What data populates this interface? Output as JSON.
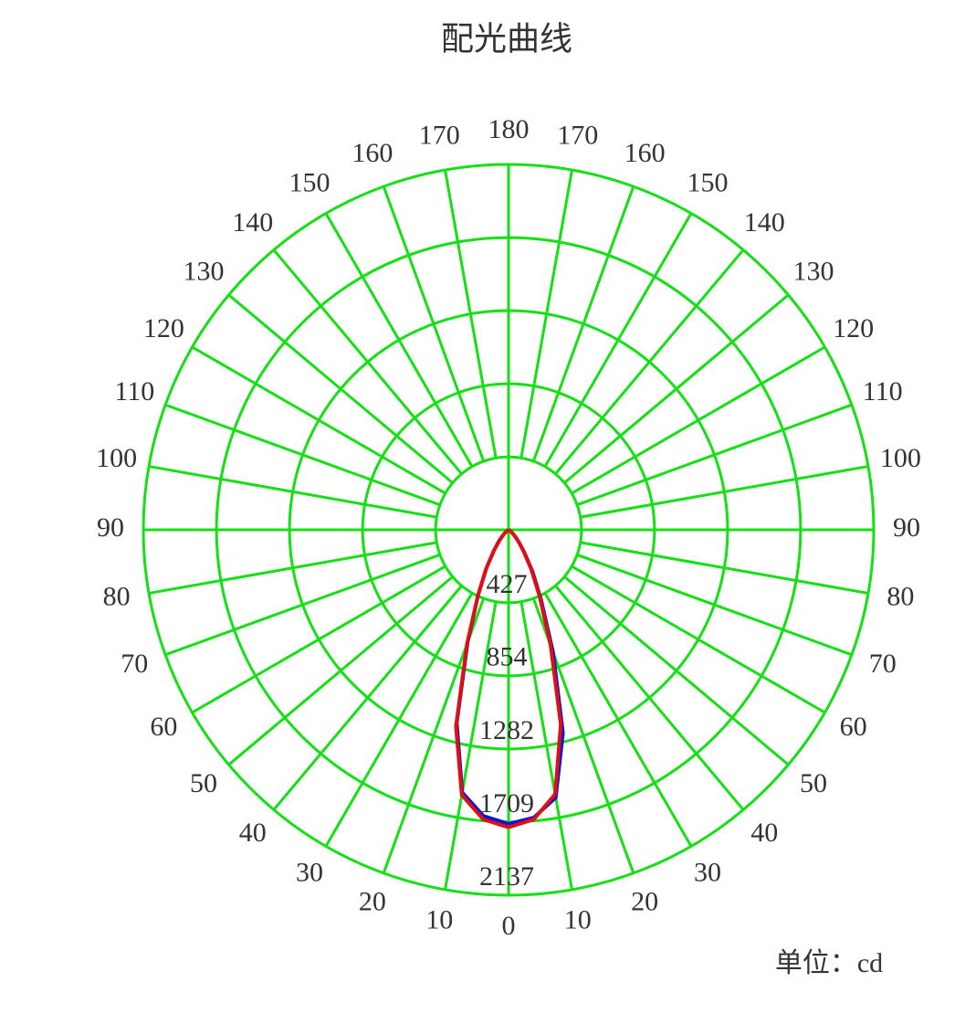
{
  "chart_data": {
    "type": "polar",
    "title": "配光曲线",
    "unit_label": "单位：cd",
    "rlim": [
      0,
      2137
    ],
    "rticks": [
      427,
      854,
      1282,
      1709,
      2137
    ],
    "angle_ticks": [
      0,
      10,
      20,
      30,
      40,
      50,
      60,
      70,
      80,
      90,
      100,
      110,
      120,
      130,
      140,
      150,
      160,
      170,
      180
    ],
    "grid_color": "#14e014",
    "x": [
      0,
      5,
      10,
      15,
      20,
      25,
      30,
      35,
      40,
      45,
      50,
      55,
      60,
      65,
      70,
      75,
      80,
      85,
      90
    ],
    "series": [
      {
        "color": "#1010e0",
        "side": "right",
        "values": [
          1720,
          1690,
          1590,
          1230,
          760,
          450,
          280,
          160,
          95,
          55,
          28,
          12,
          4,
          0,
          0,
          0,
          0,
          0,
          0
        ]
      },
      {
        "color": "#1010e0",
        "side": "left",
        "values": [
          1720,
          1680,
          1560,
          1170,
          700,
          420,
          260,
          150,
          90,
          50,
          25,
          10,
          3,
          0,
          0,
          0,
          0,
          0,
          0
        ]
      },
      {
        "color": "#e01010",
        "side": "right",
        "values": [
          1740,
          1700,
          1570,
          1180,
          720,
          430,
          265,
          155,
          92,
          52,
          26,
          11,
          3,
          0,
          0,
          0,
          0,
          0,
          0
        ]
      },
      {
        "color": "#e01010",
        "side": "left",
        "values": [
          1740,
          1700,
          1575,
          1190,
          710,
          425,
          262,
          152,
          90,
          50,
          25,
          10,
          3,
          0,
          0,
          0,
          0,
          0,
          0
        ]
      }
    ]
  }
}
